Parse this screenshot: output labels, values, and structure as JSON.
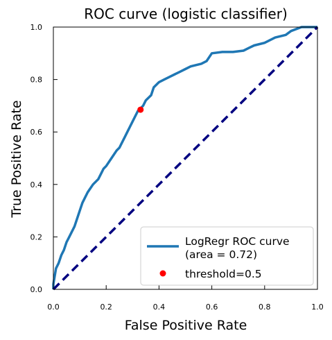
{
  "chart_data": {
    "type": "line",
    "title": "ROC curve (logistic classifier)",
    "xlabel": "False Positive Rate",
    "ylabel": "True Positive Rate",
    "xlim": [
      0,
      1
    ],
    "ylim": [
      0,
      1
    ],
    "xticks": [
      "0.0",
      "0.2",
      "0.4",
      "0.6",
      "0.8",
      "1.0"
    ],
    "yticks": [
      "0.0",
      "0.2",
      "0.4",
      "0.6",
      "0.8",
      "1.0"
    ],
    "legend_position": "lower-right",
    "grid": false,
    "series": [
      {
        "name": "LogRegr ROC curve\n (area = 0.72)",
        "color": "#1f77b4",
        "x": [
          0.0,
          0.0,
          0.005,
          0.01,
          0.02,
          0.03,
          0.04,
          0.05,
          0.06,
          0.08,
          0.1,
          0.11,
          0.12,
          0.13,
          0.15,
          0.17,
          0.18,
          0.19,
          0.2,
          0.22,
          0.24,
          0.25,
          0.26,
          0.27,
          0.28,
          0.29,
          0.3,
          0.31,
          0.32,
          0.33,
          0.34,
          0.35,
          0.37,
          0.38,
          0.4,
          0.42,
          0.44,
          0.46,
          0.48,
          0.5,
          0.52,
          0.54,
          0.56,
          0.58,
          0.6,
          0.64,
          0.68,
          0.72,
          0.74,
          0.76,
          0.8,
          0.84,
          0.88,
          0.9,
          0.94,
          0.97,
          1.0
        ],
        "y": [
          0.0,
          0.02,
          0.05,
          0.08,
          0.1,
          0.13,
          0.15,
          0.18,
          0.2,
          0.24,
          0.3,
          0.33,
          0.35,
          0.37,
          0.4,
          0.42,
          0.44,
          0.46,
          0.47,
          0.5,
          0.53,
          0.54,
          0.56,
          0.58,
          0.6,
          0.62,
          0.64,
          0.66,
          0.68,
          0.69,
          0.7,
          0.72,
          0.74,
          0.77,
          0.79,
          0.8,
          0.81,
          0.82,
          0.83,
          0.84,
          0.85,
          0.855,
          0.86,
          0.87,
          0.9,
          0.905,
          0.905,
          0.91,
          0.92,
          0.93,
          0.94,
          0.96,
          0.97,
          0.985,
          1.0,
          1.0,
          1.0
        ]
      },
      {
        "name": "",
        "color": "#000080",
        "style": "dashed",
        "x": [
          0,
          1
        ],
        "y": [
          0,
          1
        ]
      }
    ],
    "points": [
      {
        "name": "threshold=0.5",
        "x": 0.33,
        "y": 0.685,
        "color": "#ff0000"
      }
    ]
  }
}
